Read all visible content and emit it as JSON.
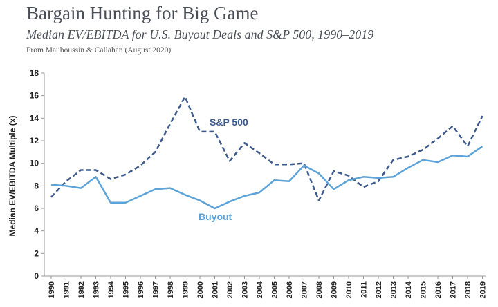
{
  "header": {
    "title": "Bargain Hunting for Big Game",
    "subtitle": "Median EV/EBITDA for U.S. Buyout Deals and S&P 500, 1990–2019",
    "source": "From Mauboussin & Callahan (August 2020)"
  },
  "chart_data": {
    "type": "line",
    "x": [
      "1990",
      "1991",
      "1992",
      "1993",
      "1994",
      "1995",
      "1996",
      "1997",
      "1998",
      "1999",
      "2000",
      "2001",
      "2002",
      "2003",
      "2004",
      "2005",
      "2006",
      "2007",
      "2008",
      "2009",
      "2010",
      "2011",
      "2012",
      "2013",
      "2014",
      "2015",
      "2016",
      "2017",
      "2018",
      "2019"
    ],
    "ylabel": "Median EV/EBITDA Multiple (x)",
    "ylim": [
      0,
      18
    ],
    "yticks": [
      "0",
      "2",
      "4",
      "6",
      "8",
      "10",
      "12",
      "14",
      "16",
      "18"
    ],
    "grid": false,
    "series": [
      {
        "name": "S&P 500",
        "style": "dashed",
        "color": "#3d5a8c",
        "values": [
          7.0,
          8.4,
          9.4,
          9.4,
          8.6,
          9.0,
          9.8,
          11.0,
          13.5,
          15.9,
          12.8,
          12.8,
          10.2,
          11.8,
          10.9,
          9.9,
          9.9,
          10.0,
          6.7,
          9.3,
          8.9,
          7.9,
          8.4,
          10.3,
          10.6,
          11.2,
          12.2,
          13.3,
          11.5,
          14.2
        ]
      },
      {
        "name": "Buyout",
        "style": "solid",
        "color": "#5ba3d9",
        "values": [
          8.1,
          8.0,
          7.8,
          8.8,
          6.5,
          6.5,
          7.1,
          7.7,
          7.8,
          7.2,
          6.7,
          6.0,
          6.6,
          7.1,
          7.4,
          8.5,
          8.4,
          9.8,
          9.1,
          7.7,
          8.5,
          8.8,
          8.7,
          8.8,
          9.6,
          10.3,
          10.1,
          10.7,
          10.6,
          11.5
        ]
      }
    ]
  }
}
